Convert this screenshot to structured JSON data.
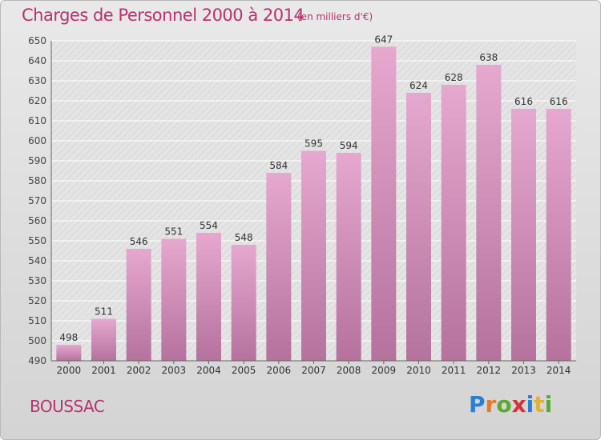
{
  "title": "Charges de Personnel 2000 à 2014",
  "unit_note": "(en milliers d'€)",
  "commune": "BOUSSAC",
  "logo": {
    "text": "Proxiti",
    "letters": [
      {
        "char": "P",
        "color": "#2a7fd4"
      },
      {
        "char": "r",
        "color": "#e8792b"
      },
      {
        "char": "o",
        "color": "#5aaa2f"
      },
      {
        "char": "x",
        "color": "#d6323a"
      },
      {
        "char": "i",
        "color": "#2a7fd4"
      },
      {
        "char": "t",
        "color": "#e8b02b"
      },
      {
        "char": "i",
        "color": "#5aaa2f"
      }
    ]
  },
  "colors": {
    "accent": "#b5336e",
    "bar_top": "#e6a8cf",
    "bar_bottom": "#b4729c"
  },
  "chart_data": {
    "type": "bar",
    "categories": [
      "2000",
      "2001",
      "2002",
      "2003",
      "2004",
      "2005",
      "2006",
      "2007",
      "2008",
      "2009",
      "2010",
      "2011",
      "2012",
      "2013",
      "2014"
    ],
    "values": [
      498,
      511,
      546,
      551,
      554,
      548,
      584,
      595,
      594,
      647,
      624,
      628,
      638,
      616,
      616
    ],
    "ylim": [
      490,
      650
    ],
    "yticks": [
      490,
      500,
      510,
      520,
      530,
      540,
      550,
      560,
      570,
      580,
      590,
      600,
      610,
      620,
      630,
      640,
      650
    ],
    "grid": true
  }
}
